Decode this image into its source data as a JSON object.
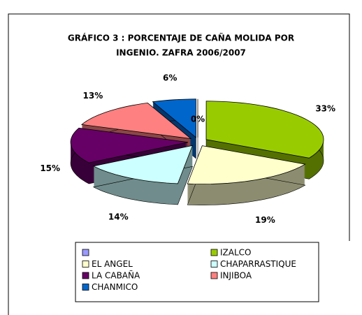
{
  "chart_data": {
    "type": "pie3d",
    "title": [
      "GRÁFICO 3 : PORCENTAJE DE CAÑA  MOLIDA POR",
      "INGENIO.  ZAFRA 2006/2007"
    ],
    "categories": [
      null,
      "IZALCO",
      "EL ANGEL",
      "CHAPARRASTIQUE",
      "LA CABAÑA",
      "INJIBOA",
      "CHANMICO"
    ],
    "values": [
      0,
      33,
      19,
      14,
      15,
      13,
      6
    ],
    "value_labels": [
      "0%",
      "33%",
      "19%",
      "14%",
      "15%",
      "13%",
      "6%"
    ],
    "colors": [
      "#9999ff",
      "#99cc00",
      "#ffffcc",
      "#ccffff",
      "#660066",
      "#ff8080",
      "#0066cc"
    ],
    "legend": "bottom"
  }
}
